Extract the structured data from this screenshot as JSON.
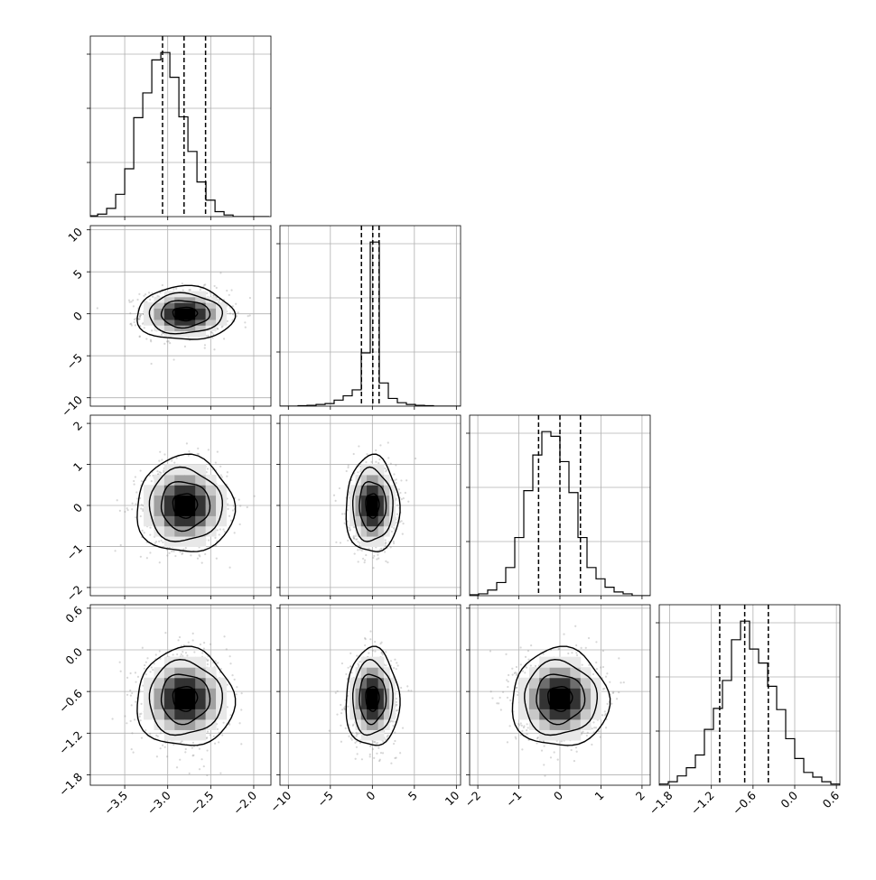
{
  "chart_data": {
    "type": "corner",
    "title": "",
    "grid": true,
    "parameters": [
      {
        "name": "",
        "range": [
          -3.9,
          -1.8
        ],
        "ticks": [
          -3.5,
          -3.0,
          -2.5,
          -2.0
        ],
        "tick_labels": [
          "−3.5",
          "−3.0",
          "−2.5",
          "−2.0"
        ],
        "quantiles": [
          -3.06,
          -2.81,
          -2.56
        ],
        "hist": {
          "edges_start": -3.92,
          "bin_width": 0.105,
          "counts": [
            1,
            3,
            10,
            27,
            58,
            120,
            150,
            190,
            199,
            169,
            121,
            79,
            42,
            20,
            6,
            2,
            0,
            0,
            0,
            0
          ]
        }
      },
      {
        "name": "",
        "range": [
          -11,
          10.5
        ],
        "ticks": [
          -10,
          -5,
          0,
          5,
          10
        ],
        "tick_labels": [
          "−10",
          "−5",
          "0",
          "5",
          "10"
        ],
        "quantiles": [
          -1.3,
          0.05,
          0.8
        ],
        "hist": {
          "edges_start": -11,
          "bin_width": 1.075,
          "counts": [
            0,
            0,
            0.5,
            1,
            2,
            3,
            7,
            12,
            19,
            62,
            191,
            27,
            9,
            4,
            2,
            1,
            0.5,
            0,
            0,
            0
          ]
        }
      },
      {
        "name": "",
        "range": [
          -2.2,
          2.2
        ],
        "ticks": [
          -2,
          -1,
          0,
          1,
          2
        ],
        "tick_labels": [
          "−2",
          "−1",
          "0",
          "1",
          "2"
        ],
        "quantiles": [
          -0.52,
          0.0,
          0.5
        ],
        "hist": {
          "edges_start": -2.2,
          "bin_width": 0.22,
          "counts": [
            1,
            2,
            6,
            14,
            30,
            62,
            112,
            150,
            175,
            170,
            143,
            110,
            62,
            30,
            18,
            9,
            4,
            2,
            0,
            0
          ]
        }
      },
      {
        "name": "",
        "range": [
          -1.95,
          0.65
        ],
        "ticks": [
          -1.8,
          -1.2,
          -0.6,
          0.0,
          0.6
        ],
        "tick_labels": [
          "−1.8",
          "−1.2",
          "−0.6",
          "0.0",
          "0.6"
        ],
        "quantiles": [
          -1.08,
          -0.72,
          -0.38
        ],
        "hist": {
          "edges_start": -1.95,
          "bin_width": 0.13,
          "counts": [
            1,
            3,
            8,
            15,
            26,
            48,
            66,
            90,
            125,
            141,
            117,
            105,
            85,
            65,
            40,
            23,
            11,
            7,
            3,
            1
          ]
        }
      }
    ],
    "pairs": [
      {
        "x": 0,
        "y": 1,
        "center": [
          -2.8,
          0.0
        ],
        "spread": [
          0.24,
          1.35
        ]
      },
      {
        "x": 0,
        "y": 2,
        "center": [
          -2.8,
          0.0
        ],
        "spread": [
          0.24,
          0.5
        ]
      },
      {
        "x": 1,
        "y": 2,
        "center": [
          0.0,
          0.0
        ],
        "spread": [
          1.35,
          0.5
        ]
      },
      {
        "x": 0,
        "y": 3,
        "center": [
          -2.8,
          -0.7
        ],
        "spread": [
          0.24,
          0.3
        ]
      },
      {
        "x": 1,
        "y": 3,
        "center": [
          0.0,
          -0.7
        ],
        "spread": [
          1.35,
          0.3
        ]
      },
      {
        "x": 2,
        "y": 3,
        "center": [
          0.0,
          -0.7
        ],
        "spread": [
          0.5,
          0.3
        ]
      }
    ],
    "contour_levels_sigma": [
      0.5,
      1.0,
      1.5,
      2.0
    ],
    "colors": {
      "hist_line": "#000000",
      "contour_line": "#000000",
      "points": "#8c8c8c",
      "grid": "#b0b0b0",
      "frame": "#000000"
    }
  }
}
